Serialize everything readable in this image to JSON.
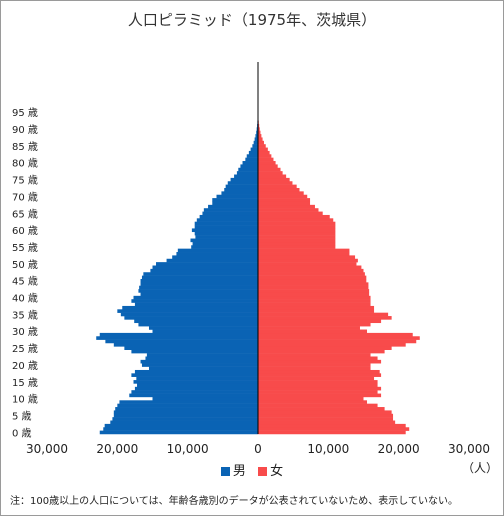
{
  "chart_data": {
    "type": "bar",
    "title": "人口ピラミッド（1975年、茨城県）",
    "age_tick_labels": [
      "0 歳",
      "5 歳",
      "10 歳",
      "15 歳",
      "20 歳",
      "25 歳",
      "30 歳",
      "35 歳",
      "40 歳",
      "45 歳",
      "50 歳",
      "55 歳",
      "60 歳",
      "65 歳",
      "70 歳",
      "75 歳",
      "80 歳",
      "85 歳",
      "90 歳",
      "95 歳"
    ],
    "x_tick_labels": [
      "30,000",
      "20,000",
      "10,000",
      "0",
      "10,000",
      "20,000",
      "30,000"
    ],
    "xlim": [
      -30000,
      30000
    ],
    "ylim": [
      0,
      100
    ],
    "unit": "（人）",
    "ages": [
      0,
      1,
      2,
      3,
      4,
      5,
      6,
      7,
      8,
      9,
      10,
      11,
      12,
      13,
      14,
      15,
      16,
      17,
      18,
      19,
      20,
      21,
      22,
      23,
      24,
      25,
      26,
      27,
      28,
      29,
      30,
      31,
      32,
      33,
      34,
      35,
      36,
      37,
      38,
      39,
      40,
      41,
      42,
      43,
      44,
      45,
      46,
      47,
      48,
      49,
      50,
      51,
      52,
      53,
      54,
      55,
      56,
      57,
      58,
      59,
      60,
      61,
      62,
      63,
      64,
      65,
      66,
      67,
      68,
      69,
      70,
      71,
      72,
      73,
      74,
      75,
      76,
      77,
      78,
      79,
      80,
      81,
      82,
      83,
      84,
      85,
      86,
      87,
      88,
      89,
      90,
      91,
      92,
      93,
      94,
      95,
      96,
      97,
      98,
      99
    ],
    "series": [
      {
        "name": "男",
        "color": "#0a63b4",
        "values": [
          22500,
          22000,
          21800,
          21000,
          20700,
          20500,
          20500,
          20300,
          20000,
          19700,
          15000,
          18300,
          18000,
          17500,
          17200,
          17700,
          17300,
          18000,
          17500,
          15500,
          16500,
          16700,
          16000,
          15800,
          18000,
          19000,
          20500,
          21700,
          23000,
          22500,
          15000,
          15500,
          17000,
          17600,
          19000,
          19500,
          20000,
          19300,
          17500,
          18000,
          17700,
          16700,
          17000,
          16900,
          16700,
          16700,
          16500,
          16300,
          15300,
          15000,
          14500,
          13000,
          12200,
          11600,
          11400,
          9500,
          9300,
          9600,
          8900,
          9000,
          9400,
          9000,
          9000,
          8700,
          8300,
          7900,
          7700,
          7100,
          6500,
          6500,
          5900,
          5200,
          4800,
          4600,
          4300,
          3900,
          3400,
          3000,
          2800,
          2500,
          2200,
          1800,
          1600,
          1300,
          1050,
          800,
          620,
          480,
          360,
          260,
          190,
          130,
          90,
          60,
          40,
          25,
          15,
          10,
          5,
          3
        ]
      },
      {
        "name": "女",
        "color": "#f84b4b",
        "values": [
          21000,
          21500,
          21000,
          19500,
          19200,
          19200,
          19000,
          18000,
          17000,
          15500,
          15000,
          17500,
          17000,
          17500,
          17000,
          17000,
          16500,
          17500,
          17300,
          16000,
          16000,
          17500,
          17000,
          16000,
          18000,
          19000,
          21000,
          22500,
          23000,
          22000,
          15500,
          14500,
          16000,
          17500,
          19000,
          18500,
          16500,
          16500,
          16000,
          16000,
          16000,
          15800,
          15800,
          15700,
          15700,
          15400,
          15400,
          15200,
          15000,
          14700,
          14000,
          14200,
          13800,
          13000,
          13000,
          11000,
          11000,
          11000,
          11000,
          11000,
          11000,
          11000,
          11000,
          10700,
          10200,
          9200,
          8600,
          8100,
          7400,
          7400,
          7000,
          6500,
          5900,
          5500,
          4900,
          4500,
          4000,
          3500,
          3200,
          2800,
          2500,
          2200,
          1900,
          1650,
          1400,
          1100,
          850,
          650,
          480,
          350,
          250,
          170,
          110,
          70,
          45,
          30,
          18,
          10,
          6,
          3
        ]
      }
    ]
  },
  "legend": {
    "male_label": "男",
    "female_label": "女"
  },
  "footnote": "注：100歳以上の人口については、年齢各歳別のデータが公表されていないため、表示していない。"
}
